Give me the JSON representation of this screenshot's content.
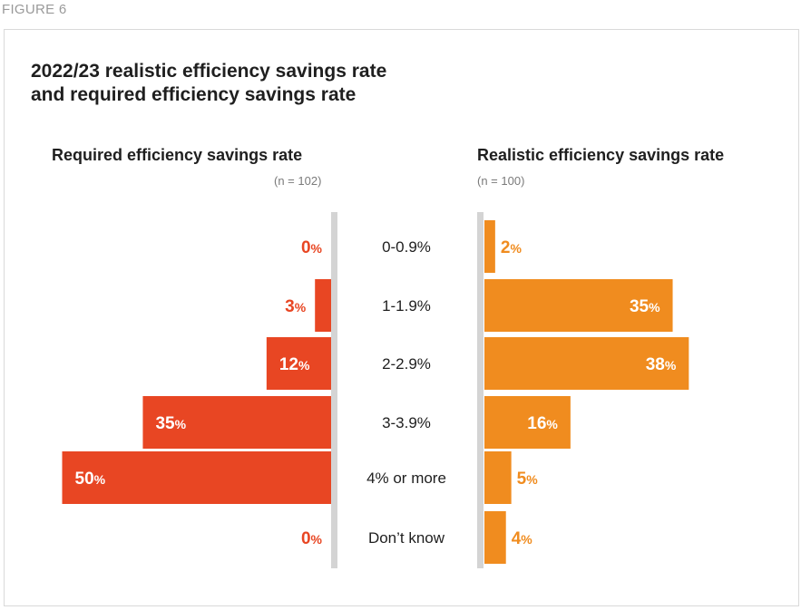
{
  "figure_label": "FIGURE 6",
  "title_line1": "2022/23 realistic efficiency savings rate",
  "title_line2": "and required efficiency savings rate",
  "left_panel": {
    "heading": "Required efficiency savings rate",
    "n": "(n = 102)"
  },
  "right_panel": {
    "heading": "Realistic efficiency savings rate",
    "n": "(n = 100)"
  },
  "colors": {
    "required": "#e84623",
    "realistic": "#f08c1f",
    "axis": "#d4d4d4",
    "text": "#1f1f1f"
  },
  "chart_data": {
    "type": "bar",
    "orientation": "horizontal-butterfly",
    "title": "2022/23 realistic efficiency savings rate and required efficiency savings rate",
    "categories": [
      "0-0.9%",
      "1-1.9%",
      "2-2.9%",
      "3-3.9%",
      "4% or more",
      "Don’t know"
    ],
    "series": [
      {
        "name": "Required efficiency savings rate",
        "side": "left",
        "values": [
          0,
          3,
          12,
          35,
          50,
          0
        ]
      },
      {
        "name": "Realistic efficiency savings rate",
        "side": "right",
        "values": [
          2,
          35,
          38,
          16,
          5,
          4
        ]
      }
    ],
    "unit": "%",
    "xlim": [
      0,
      50
    ]
  }
}
